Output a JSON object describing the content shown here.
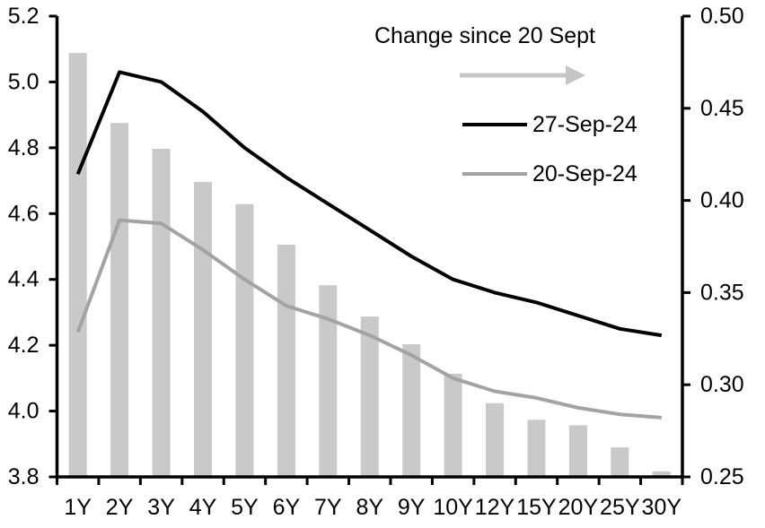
{
  "chart_data": {
    "type": "bar+line",
    "title": "",
    "categories": [
      "1Y",
      "2Y",
      "3Y",
      "4Y",
      "5Y",
      "6Y",
      "7Y",
      "8Y",
      "9Y",
      "10Y",
      "12Y",
      "15Y",
      "20Y",
      "25Y",
      "30Y"
    ],
    "bar_series": {
      "name": "Change since 20 Sept",
      "axis": "right",
      "color": "#c9c9c9",
      "values": [
        0.48,
        0.442,
        0.428,
        0.41,
        0.398,
        0.376,
        0.354,
        0.337,
        0.322,
        0.306,
        0.29,
        0.281,
        0.278,
        0.266,
        0.253
      ]
    },
    "line_series": [
      {
        "name": "27-Sep-24",
        "axis": "left",
        "color": "#000000",
        "values": [
          4.72,
          5.03,
          5.0,
          4.91,
          4.8,
          4.71,
          4.63,
          4.55,
          4.47,
          4.4,
          4.36,
          4.33,
          4.29,
          4.25,
          4.23
        ]
      },
      {
        "name": "20-Sep-24",
        "axis": "left",
        "color": "#a3a3a3",
        "values": [
          4.24,
          4.58,
          4.57,
          4.49,
          4.4,
          4.32,
          4.28,
          4.23,
          4.17,
          4.1,
          4.06,
          4.04,
          4.01,
          3.99,
          3.98
        ]
      }
    ],
    "left_axis": {
      "min": 3.8,
      "max": 5.2,
      "tick_labels": [
        "5.2",
        "5.0",
        "4.8",
        "4.6",
        "4.4",
        "4.2",
        "4.0",
        "3.8"
      ]
    },
    "right_axis": {
      "min": 0.25,
      "max": 0.5,
      "tick_labels": [
        "0.50",
        "0.45",
        "0.40",
        "0.35",
        "0.30",
        "0.25"
      ]
    },
    "legend": {
      "position": "inside-top-right",
      "arrow_color": "#c6c6c6"
    },
    "grid": false,
    "axis_color": "#000000"
  }
}
